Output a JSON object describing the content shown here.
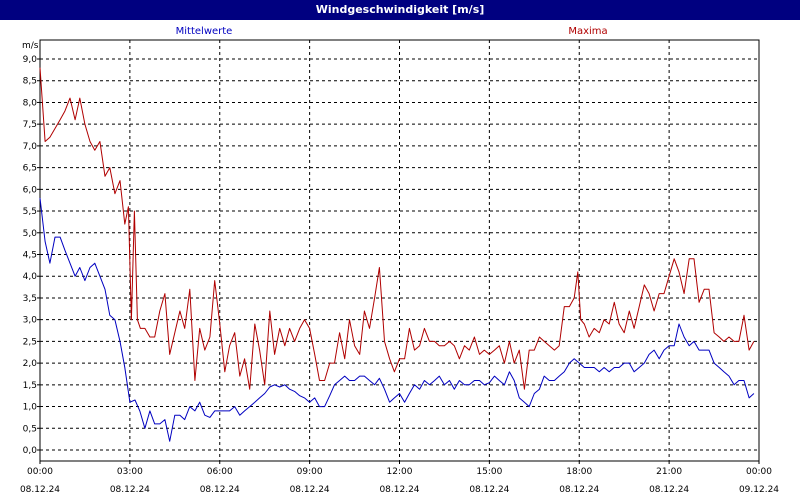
{
  "window": {
    "title": "Windgeschwindigkeit [m/s]"
  },
  "chart_data": {
    "type": "line",
    "title": "Windgeschwindigkeit [m/s]",
    "ylabel": "m/s",
    "xlabel": "",
    "ylim": [
      0,
      9
    ],
    "ytick_step": 0.5,
    "y_ticks": [
      "0,0",
      "0,5",
      "1,0",
      "1,5",
      "2,0",
      "2,5",
      "3,0",
      "3,5",
      "4,0",
      "4,5",
      "5,0",
      "5,5",
      "6,0",
      "6,5",
      "7,0",
      "7,5",
      "8,0",
      "8,5",
      "9,0"
    ],
    "xlim_hours": [
      0,
      24
    ],
    "x_ticks": [
      {
        "time": "00:00",
        "date": "08.12.24"
      },
      {
        "time": "03:00",
        "date": "08.12.24"
      },
      {
        "time": "06:00",
        "date": "08.12.24"
      },
      {
        "time": "09:00",
        "date": "08.12.24"
      },
      {
        "time": "12:00",
        "date": "08.12.24"
      },
      {
        "time": "15:00",
        "date": "08.12.24"
      },
      {
        "time": "18:00",
        "date": "08.12.24"
      },
      {
        "time": "21:00",
        "date": "08.12.24"
      },
      {
        "time": "00:00",
        "date": "09.12.24"
      }
    ],
    "grid": true,
    "legend_placement": "top",
    "series": [
      {
        "name": "Mittelwerte",
        "color": "#0000c0",
        "points": [
          [
            0.0,
            5.8
          ],
          [
            0.17,
            4.8
          ],
          [
            0.33,
            4.3
          ],
          [
            0.5,
            4.9
          ],
          [
            0.67,
            4.9
          ],
          [
            0.83,
            4.6
          ],
          [
            1.0,
            4.3
          ],
          [
            1.17,
            4.0
          ],
          [
            1.33,
            4.2
          ],
          [
            1.5,
            3.9
          ],
          [
            1.67,
            4.2
          ],
          [
            1.83,
            4.3
          ],
          [
            2.0,
            4.0
          ],
          [
            2.17,
            3.7
          ],
          [
            2.33,
            3.1
          ],
          [
            2.5,
            3.0
          ],
          [
            2.67,
            2.5
          ],
          [
            2.83,
            1.9
          ],
          [
            3.0,
            1.1
          ],
          [
            3.17,
            1.15
          ],
          [
            3.33,
            0.9
          ],
          [
            3.5,
            0.5
          ],
          [
            3.67,
            0.9
          ],
          [
            3.83,
            0.6
          ],
          [
            4.0,
            0.6
          ],
          [
            4.17,
            0.7
          ],
          [
            4.33,
            0.2
          ],
          [
            4.5,
            0.8
          ],
          [
            4.67,
            0.8
          ],
          [
            4.83,
            0.7
          ],
          [
            5.0,
            1.0
          ],
          [
            5.17,
            0.9
          ],
          [
            5.33,
            1.1
          ],
          [
            5.5,
            0.8
          ],
          [
            5.67,
            0.75
          ],
          [
            5.83,
            0.9
          ],
          [
            6.0,
            0.9
          ],
          [
            6.17,
            0.9
          ],
          [
            6.33,
            0.9
          ],
          [
            6.5,
            1.0
          ],
          [
            6.67,
            0.8
          ],
          [
            6.83,
            0.9
          ],
          [
            7.0,
            1.0
          ],
          [
            7.17,
            1.1
          ],
          [
            7.33,
            1.2
          ],
          [
            7.5,
            1.3
          ],
          [
            7.67,
            1.45
          ],
          [
            7.83,
            1.5
          ],
          [
            8.0,
            1.45
          ],
          [
            8.17,
            1.5
          ],
          [
            8.33,
            1.4
          ],
          [
            8.5,
            1.35
          ],
          [
            8.67,
            1.25
          ],
          [
            8.83,
            1.2
          ],
          [
            9.0,
            1.1
          ],
          [
            9.17,
            1.2
          ],
          [
            9.33,
            1.0
          ],
          [
            9.5,
            1.0
          ],
          [
            9.67,
            1.25
          ],
          [
            9.83,
            1.5
          ],
          [
            10.0,
            1.6
          ],
          [
            10.17,
            1.7
          ],
          [
            10.33,
            1.6
          ],
          [
            10.5,
            1.6
          ],
          [
            10.67,
            1.7
          ],
          [
            10.83,
            1.7
          ],
          [
            11.0,
            1.6
          ],
          [
            11.17,
            1.5
          ],
          [
            11.33,
            1.65
          ],
          [
            11.5,
            1.4
          ],
          [
            11.67,
            1.1
          ],
          [
            11.83,
            1.2
          ],
          [
            12.0,
            1.3
          ],
          [
            12.17,
            1.1
          ],
          [
            12.33,
            1.3
          ],
          [
            12.5,
            1.5
          ],
          [
            12.67,
            1.4
          ],
          [
            12.83,
            1.6
          ],
          [
            13.0,
            1.5
          ],
          [
            13.17,
            1.6
          ],
          [
            13.33,
            1.7
          ],
          [
            13.5,
            1.5
          ],
          [
            13.67,
            1.6
          ],
          [
            13.83,
            1.4
          ],
          [
            14.0,
            1.6
          ],
          [
            14.17,
            1.5
          ],
          [
            14.33,
            1.5
          ],
          [
            14.5,
            1.6
          ],
          [
            14.67,
            1.6
          ],
          [
            14.83,
            1.5
          ],
          [
            15.0,
            1.55
          ],
          [
            15.17,
            1.7
          ],
          [
            15.33,
            1.6
          ],
          [
            15.5,
            1.5
          ],
          [
            15.67,
            1.8
          ],
          [
            15.83,
            1.6
          ],
          [
            16.0,
            1.2
          ],
          [
            16.17,
            1.1
          ],
          [
            16.33,
            1.0
          ],
          [
            16.5,
            1.3
          ],
          [
            16.67,
            1.4
          ],
          [
            16.83,
            1.7
          ],
          [
            17.0,
            1.6
          ],
          [
            17.17,
            1.6
          ],
          [
            17.33,
            1.7
          ],
          [
            17.5,
            1.8
          ],
          [
            17.67,
            2.0
          ],
          [
            17.83,
            2.1
          ],
          [
            18.0,
            2.0
          ],
          [
            18.17,
            1.9
          ],
          [
            18.33,
            1.9
          ],
          [
            18.5,
            1.9
          ],
          [
            18.67,
            1.8
          ],
          [
            18.83,
            1.9
          ],
          [
            19.0,
            1.8
          ],
          [
            19.17,
            1.9
          ],
          [
            19.33,
            1.9
          ],
          [
            19.5,
            2.0
          ],
          [
            19.67,
            2.0
          ],
          [
            19.83,
            1.8
          ],
          [
            20.0,
            1.9
          ],
          [
            20.17,
            2.0
          ],
          [
            20.33,
            2.2
          ],
          [
            20.5,
            2.3
          ],
          [
            20.67,
            2.1
          ],
          [
            20.83,
            2.3
          ],
          [
            21.0,
            2.4
          ],
          [
            21.17,
            2.4
          ],
          [
            21.33,
            2.9
          ],
          [
            21.5,
            2.6
          ],
          [
            21.67,
            2.4
          ],
          [
            21.83,
            2.5
          ],
          [
            22.0,
            2.3
          ],
          [
            22.17,
            2.3
          ],
          [
            22.33,
            2.3
          ],
          [
            22.5,
            2.0
          ],
          [
            22.67,
            1.9
          ],
          [
            22.83,
            1.8
          ],
          [
            23.0,
            1.7
          ],
          [
            23.17,
            1.5
          ],
          [
            23.33,
            1.6
          ],
          [
            23.5,
            1.6
          ],
          [
            23.67,
            1.2
          ],
          [
            23.83,
            1.3
          ]
        ]
      },
      {
        "name": "Maxima",
        "color": "#b00000",
        "points": [
          [
            0.0,
            8.8
          ],
          [
            0.17,
            7.1
          ],
          [
            0.33,
            7.2
          ],
          [
            0.5,
            7.4
          ],
          [
            0.67,
            7.6
          ],
          [
            0.83,
            7.8
          ],
          [
            1.0,
            8.1
          ],
          [
            1.17,
            7.6
          ],
          [
            1.33,
            8.1
          ],
          [
            1.5,
            7.5
          ],
          [
            1.67,
            7.1
          ],
          [
            1.83,
            6.9
          ],
          [
            2.0,
            7.1
          ],
          [
            2.17,
            6.3
          ],
          [
            2.33,
            6.5
          ],
          [
            2.5,
            5.9
          ],
          [
            2.67,
            6.2
          ],
          [
            2.83,
            5.2
          ],
          [
            2.95,
            5.6
          ],
          [
            3.05,
            3.0
          ],
          [
            3.15,
            5.5
          ],
          [
            3.25,
            3.0
          ],
          [
            3.35,
            2.8
          ],
          [
            3.5,
            2.8
          ],
          [
            3.67,
            2.6
          ],
          [
            3.83,
            2.6
          ],
          [
            4.0,
            3.2
          ],
          [
            4.17,
            3.6
          ],
          [
            4.33,
            2.2
          ],
          [
            4.5,
            2.7
          ],
          [
            4.67,
            3.2
          ],
          [
            4.83,
            2.8
          ],
          [
            5.0,
            3.7
          ],
          [
            5.17,
            1.6
          ],
          [
            5.33,
            2.8
          ],
          [
            5.5,
            2.3
          ],
          [
            5.67,
            2.6
          ],
          [
            5.83,
            3.9
          ],
          [
            6.0,
            2.9
          ],
          [
            6.17,
            1.8
          ],
          [
            6.33,
            2.4
          ],
          [
            6.5,
            2.7
          ],
          [
            6.67,
            1.7
          ],
          [
            6.83,
            2.1
          ],
          [
            7.0,
            1.4
          ],
          [
            7.17,
            2.9
          ],
          [
            7.33,
            2.3
          ],
          [
            7.5,
            1.5
          ],
          [
            7.67,
            3.2
          ],
          [
            7.83,
            2.2
          ],
          [
            8.0,
            2.8
          ],
          [
            8.17,
            2.4
          ],
          [
            8.33,
            2.8
          ],
          [
            8.5,
            2.5
          ],
          [
            8.67,
            2.8
          ],
          [
            8.83,
            3.0
          ],
          [
            9.0,
            2.8
          ],
          [
            9.17,
            2.2
          ],
          [
            9.33,
            1.6
          ],
          [
            9.5,
            1.6
          ],
          [
            9.67,
            2.0
          ],
          [
            9.83,
            2.0
          ],
          [
            10.0,
            2.7
          ],
          [
            10.17,
            2.1
          ],
          [
            10.33,
            3.0
          ],
          [
            10.5,
            2.4
          ],
          [
            10.67,
            2.2
          ],
          [
            10.83,
            3.2
          ],
          [
            11.0,
            2.8
          ],
          [
            11.17,
            3.5
          ],
          [
            11.33,
            4.2
          ],
          [
            11.5,
            2.5
          ],
          [
            11.67,
            2.1
          ],
          [
            11.83,
            1.8
          ],
          [
            12.0,
            2.1
          ],
          [
            12.17,
            2.1
          ],
          [
            12.33,
            2.8
          ],
          [
            12.5,
            2.3
          ],
          [
            12.67,
            2.4
          ],
          [
            12.83,
            2.8
          ],
          [
            13.0,
            2.5
          ],
          [
            13.17,
            2.5
          ],
          [
            13.33,
            2.4
          ],
          [
            13.5,
            2.4
          ],
          [
            13.67,
            2.5
          ],
          [
            13.83,
            2.4
          ],
          [
            14.0,
            2.1
          ],
          [
            14.17,
            2.4
          ],
          [
            14.33,
            2.3
          ],
          [
            14.5,
            2.6
          ],
          [
            14.67,
            2.2
          ],
          [
            14.83,
            2.3
          ],
          [
            15.0,
            2.2
          ],
          [
            15.17,
            2.3
          ],
          [
            15.33,
            2.4
          ],
          [
            15.5,
            2.0
          ],
          [
            15.67,
            2.5
          ],
          [
            15.83,
            2.0
          ],
          [
            16.0,
            2.3
          ],
          [
            16.17,
            1.4
          ],
          [
            16.33,
            2.3
          ],
          [
            16.5,
            2.3
          ],
          [
            16.67,
            2.6
          ],
          [
            16.83,
            2.5
          ],
          [
            17.0,
            2.4
          ],
          [
            17.17,
            2.3
          ],
          [
            17.33,
            2.4
          ],
          [
            17.5,
            3.3
          ],
          [
            17.67,
            3.3
          ],
          [
            17.83,
            3.5
          ],
          [
            17.95,
            4.1
          ],
          [
            18.05,
            3.0
          ],
          [
            18.17,
            2.9
          ],
          [
            18.33,
            2.6
          ],
          [
            18.5,
            2.8
          ],
          [
            18.67,
            2.7
          ],
          [
            18.83,
            3.0
          ],
          [
            19.0,
            2.9
          ],
          [
            19.17,
            3.4
          ],
          [
            19.33,
            2.9
          ],
          [
            19.5,
            2.7
          ],
          [
            19.67,
            3.2
          ],
          [
            19.83,
            2.8
          ],
          [
            20.0,
            3.3
          ],
          [
            20.17,
            3.8
          ],
          [
            20.33,
            3.6
          ],
          [
            20.5,
            3.2
          ],
          [
            20.67,
            3.6
          ],
          [
            20.83,
            3.6
          ],
          [
            21.0,
            4.0
          ],
          [
            21.17,
            4.4
          ],
          [
            21.33,
            4.1
          ],
          [
            21.5,
            3.6
          ],
          [
            21.67,
            4.4
          ],
          [
            21.83,
            4.4
          ],
          [
            22.0,
            3.4
          ],
          [
            22.17,
            3.7
          ],
          [
            22.33,
            3.7
          ],
          [
            22.5,
            2.7
          ],
          [
            22.67,
            2.6
          ],
          [
            22.83,
            2.5
          ],
          [
            23.0,
            2.6
          ],
          [
            23.17,
            2.5
          ],
          [
            23.33,
            2.5
          ],
          [
            23.5,
            3.1
          ],
          [
            23.67,
            2.3
          ],
          [
            23.83,
            2.5
          ]
        ]
      }
    ]
  }
}
